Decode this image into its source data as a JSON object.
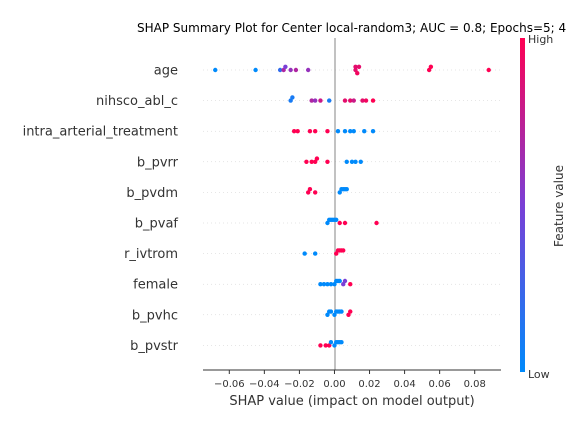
{
  "chart_data": {
    "type": "scatter",
    "title": "SHAP Summary Plot for Center local-random3; AUC = 0.8; Epochs=5; 4",
    "xlabel": "SHAP value (impact on model output)",
    "xlim": [
      -0.075,
      0.095
    ],
    "x_ticks": [
      -0.06,
      -0.04,
      -0.02,
      0.0,
      0.02,
      0.04,
      0.06,
      0.08
    ],
    "x_tick_labels": [
      "−0.06",
      "−0.04",
      "−0.02",
      "0.00",
      "0.02",
      "0.04",
      "0.06",
      "0.08"
    ],
    "colorbar": {
      "label": "Feature value",
      "high": "High",
      "low": "Low",
      "color_low": "#008afb",
      "color_high": "#ff0052"
    },
    "features": [
      {
        "name": "age",
        "points": [
          [
            -0.068,
            0.0
          ],
          [
            -0.045,
            0.0
          ],
          [
            -0.031,
            0.2
          ],
          [
            -0.029,
            0.7
          ],
          [
            -0.028,
            0.5
          ],
          [
            -0.025,
            0.6
          ],
          [
            -0.022,
            0.7
          ],
          [
            -0.015,
            0.6
          ],
          [
            0.012,
            0.9
          ],
          [
            0.012,
            0.9
          ],
          [
            0.013,
            0.95
          ],
          [
            0.014,
            0.9
          ],
          [
            0.054,
            1.0
          ],
          [
            0.055,
            1.0
          ],
          [
            0.088,
            1.0
          ]
        ]
      },
      {
        "name": "nihsco_abl_c",
        "points": [
          [
            -0.025,
            0.1
          ],
          [
            -0.024,
            0.1
          ],
          [
            -0.013,
            0.7
          ],
          [
            -0.011,
            0.6
          ],
          [
            -0.008,
            0.8
          ],
          [
            -0.003,
            0.1
          ],
          [
            0.006,
            0.9
          ],
          [
            0.009,
            0.9
          ],
          [
            0.011,
            0.8
          ],
          [
            0.016,
            0.9
          ],
          [
            0.018,
            0.95
          ],
          [
            0.022,
            1.0
          ]
        ]
      },
      {
        "name": "intra_arterial_treatment",
        "points": [
          [
            -0.023,
            1.0
          ],
          [
            -0.021,
            1.0
          ],
          [
            -0.014,
            1.0
          ],
          [
            -0.011,
            1.0
          ],
          [
            -0.004,
            1.0
          ],
          [
            0.002,
            0.0
          ],
          [
            0.006,
            0.0
          ],
          [
            0.009,
            0.0
          ],
          [
            0.011,
            0.0
          ],
          [
            0.017,
            0.0
          ],
          [
            0.022,
            0.0
          ]
        ]
      },
      {
        "name": "b_pvrr",
        "points": [
          [
            -0.016,
            1.0
          ],
          [
            -0.013,
            1.0
          ],
          [
            -0.011,
            1.0
          ],
          [
            -0.01,
            1.0
          ],
          [
            -0.004,
            1.0
          ],
          [
            0.007,
            0.0
          ],
          [
            0.01,
            0.0
          ],
          [
            0.012,
            0.0
          ],
          [
            0.015,
            0.0
          ]
        ]
      },
      {
        "name": "b_pvdm",
        "points": [
          [
            -0.015,
            1.0
          ],
          [
            -0.014,
            1.0
          ],
          [
            -0.011,
            1.0
          ],
          [
            0.003,
            0.0
          ],
          [
            0.004,
            0.0
          ],
          [
            0.005,
            0.0
          ],
          [
            0.006,
            0.0
          ],
          [
            0.007,
            0.0
          ]
        ]
      },
      {
        "name": "b_pvaf",
        "points": [
          [
            -0.004,
            0.0
          ],
          [
            -0.003,
            0.0
          ],
          [
            -0.002,
            0.0
          ],
          [
            -0.001,
            0.0
          ],
          [
            0.0,
            0.0
          ],
          [
            0.001,
            0.0
          ],
          [
            0.003,
            1.0
          ],
          [
            0.006,
            1.0
          ],
          [
            0.024,
            1.0
          ]
        ]
      },
      {
        "name": "r_ivtrom",
        "points": [
          [
            -0.017,
            0.0
          ],
          [
            -0.011,
            0.0
          ],
          [
            0.001,
            1.0
          ],
          [
            0.002,
            1.0
          ],
          [
            0.003,
            1.0
          ],
          [
            0.004,
            1.0
          ],
          [
            0.005,
            1.0
          ]
        ]
      },
      {
        "name": "female",
        "points": [
          [
            -0.008,
            0.0
          ],
          [
            -0.006,
            0.0
          ],
          [
            -0.004,
            0.0
          ],
          [
            -0.002,
            0.0
          ],
          [
            0.0,
            0.0
          ],
          [
            0.001,
            0.0
          ],
          [
            0.002,
            0.0
          ],
          [
            0.003,
            0.0
          ],
          [
            0.005,
            0.5
          ],
          [
            0.006,
            0.5
          ],
          [
            0.009,
            1.0
          ]
        ]
      },
      {
        "name": "b_pvhc",
        "points": [
          [
            -0.004,
            0.0
          ],
          [
            -0.003,
            0.0
          ],
          [
            -0.002,
            0.0
          ],
          [
            0.0,
            0.0
          ],
          [
            0.001,
            0.0
          ],
          [
            0.002,
            0.0
          ],
          [
            0.003,
            0.0
          ],
          [
            0.004,
            0.0
          ],
          [
            0.008,
            1.0
          ],
          [
            0.009,
            1.0
          ]
        ]
      },
      {
        "name": "b_pvstr",
        "points": [
          [
            -0.008,
            1.0
          ],
          [
            -0.005,
            1.0
          ],
          [
            -0.003,
            1.0
          ],
          [
            -0.002,
            0.0
          ],
          [
            0.0,
            0.0
          ],
          [
            0.001,
            0.0
          ],
          [
            0.002,
            0.0
          ],
          [
            0.003,
            0.0
          ],
          [
            0.004,
            0.0
          ]
        ]
      }
    ]
  }
}
